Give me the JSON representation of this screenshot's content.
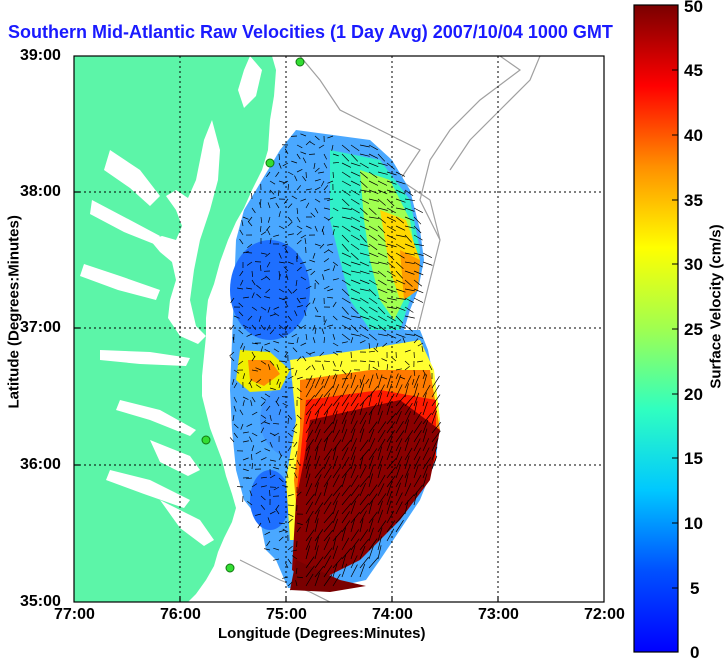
{
  "title": "Southern Mid-Atlantic Raw Velocities (1 Day Avg) 2007/10/04 1000 GMT",
  "xlabel": "Longitude (Degrees:Minutes)",
  "ylabel": "Latitude (Degrees:Minutes)",
  "x_ticks": [
    "77:00",
    "76:00",
    "75:00",
    "74:00",
    "73:00",
    "72:00"
  ],
  "y_ticks": [
    "39:00",
    "38:00",
    "37:00",
    "36:00",
    "35:00"
  ],
  "colorbar": {
    "label": "Surface Velocity (cm/s)",
    "ticks": [
      "50",
      "45",
      "40",
      "35",
      "30",
      "25",
      "20",
      "15",
      "10",
      "5",
      "0"
    ],
    "min": 0,
    "max": 50,
    "colormap": "jet"
  },
  "colors": {
    "land": "#5cf5a8",
    "water": "#ffffff",
    "title": "#1a1aff",
    "grid": "#000000",
    "bathymetry": "#a0a0a0",
    "station": "#33dd33"
  }
}
